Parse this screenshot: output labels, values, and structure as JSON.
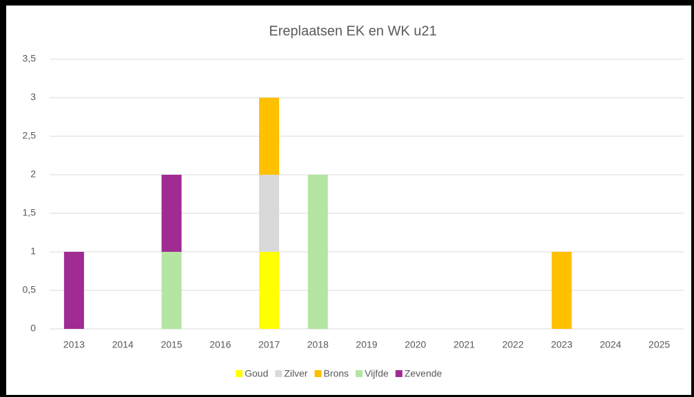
{
  "chart_data": {
    "type": "stacked-bar",
    "title": "Ereplaatsen EK en WK u21",
    "categories": [
      "2013",
      "2014",
      "2015",
      "2016",
      "2017",
      "2018",
      "2019",
      "2020",
      "2021",
      "2022",
      "2023",
      "2024",
      "2025"
    ],
    "series": [
      {
        "name": "Goud",
        "color": "#FFFF00",
        "values": [
          0,
          0,
          0,
          0,
          1,
          0,
          0,
          0,
          0,
          0,
          0,
          0,
          0
        ]
      },
      {
        "name": "Zilver",
        "color": "#D9D9D9",
        "values": [
          0,
          0,
          0,
          0,
          1,
          0,
          0,
          0,
          0,
          0,
          0,
          0,
          0
        ]
      },
      {
        "name": "Brons",
        "color": "#FFC000",
        "values": [
          0,
          0,
          0,
          0,
          1,
          0,
          0,
          0,
          0,
          0,
          1,
          0,
          0
        ]
      },
      {
        "name": "Vijfde",
        "color": "#B4E5A2",
        "values": [
          0,
          0,
          1,
          0,
          0,
          2,
          0,
          0,
          0,
          0,
          0,
          0,
          0
        ]
      },
      {
        "name": "Zevende",
        "color": "#A02B93",
        "values": [
          1,
          0,
          1,
          0,
          0,
          0,
          0,
          0,
          0,
          0,
          0,
          0,
          0
        ]
      }
    ],
    "ylim": [
      0,
      3.5
    ],
    "yticks": [
      0,
      {
        "value": 0.5,
        "label": "0,5"
      },
      1,
      {
        "value": 1.5,
        "label": "1,5"
      },
      2,
      {
        "value": 2.5,
        "label": "2,5"
      },
      3,
      {
        "value": 3.5,
        "label": "3,5"
      }
    ],
    "grid": true,
    "legend": "bottom"
  }
}
